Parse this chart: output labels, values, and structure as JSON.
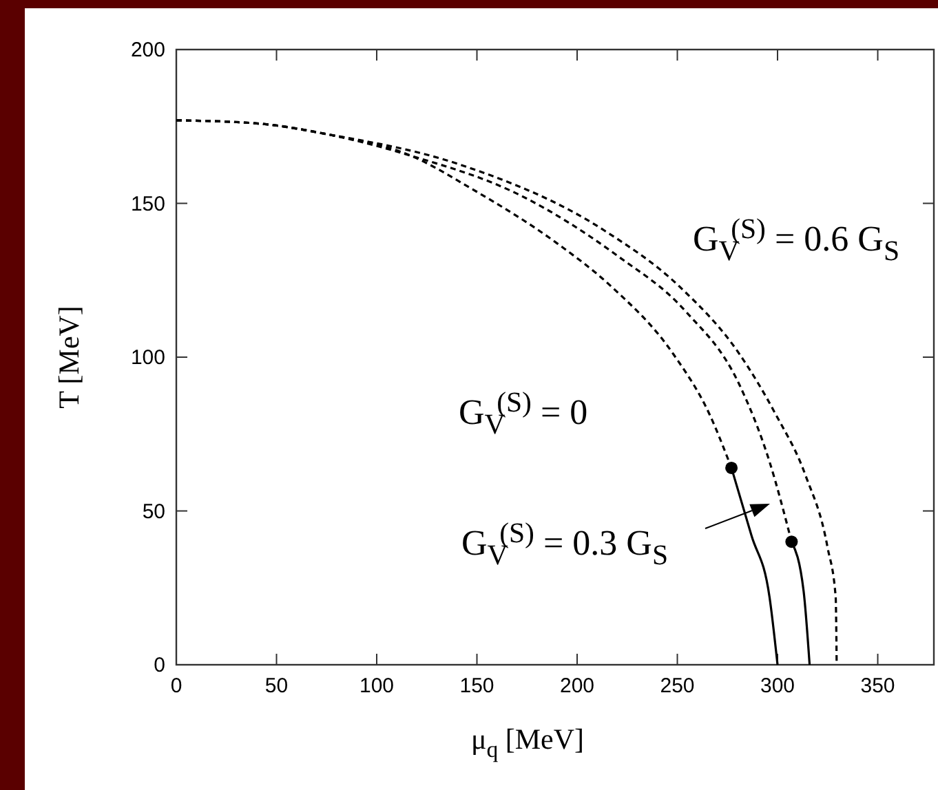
{
  "chart_data": {
    "type": "line",
    "xlabel": "μ$_{q}$ [MeV]",
    "ylabel": "T [MeV]",
    "xlim": [
      0,
      378
    ],
    "ylim": [
      0,
      200
    ],
    "xticks": [
      0,
      50,
      100,
      150,
      200,
      250,
      300,
      350
    ],
    "yticks": [
      0,
      50,
      100,
      150,
      200
    ],
    "grid": false,
    "series": [
      {
        "line_style": "dashed",
        "color": "#000000",
        "x": [
          0,
          40,
          75,
          117,
          148,
          190,
          217,
          248,
          266,
          277
        ],
        "values": [
          177,
          176,
          172.5,
          165.5,
          154.5,
          137,
          123,
          101,
          81.5,
          64
        ]
      },
      {
        "line_style": "solid",
        "color": "#000000",
        "x": [
          277,
          287,
          296,
          300
        ],
        "values": [
          64,
          42,
          22,
          0
        ]
      },
      {
        "line_style": "dashed",
        "color": "#000000",
        "x": [
          0,
          40,
          75,
          117,
          172,
          220,
          254,
          281,
          296,
          307
        ],
        "values": [
          177,
          176,
          172.5,
          165.5,
          152.5,
          133,
          115,
          91,
          66,
          40
        ]
      },
      {
        "line_style": "solid",
        "color": "#000000",
        "x": [
          307,
          313,
          316
        ],
        "values": [
          40,
          24,
          0
        ]
      },
      {
        "line_style": "dashed",
        "color": "#000000",
        "x": [
          0,
          40,
          75,
          142,
          214,
          251,
          281,
          299,
          314,
          325,
          329,
          329.5
        ],
        "values": [
          177,
          176,
          172.5,
          162.5,
          141,
          123,
          101,
          81.5,
          61.5,
          38,
          22,
          0
        ]
      },
      {
        "type": "scatter",
        "marker": "circle",
        "color": "#000000",
        "x": [
          277,
          307
        ],
        "values": [
          64,
          40
        ]
      }
    ],
    "annotations": [
      "G$_{V}$$^{(S)}$ =  0.6 G$_{S}$",
      "G$_{V}$$^{(S)}$ =  0",
      "G$_{V}$$^{(S)}$ =  0.3 G$_{S}$"
    ]
  }
}
